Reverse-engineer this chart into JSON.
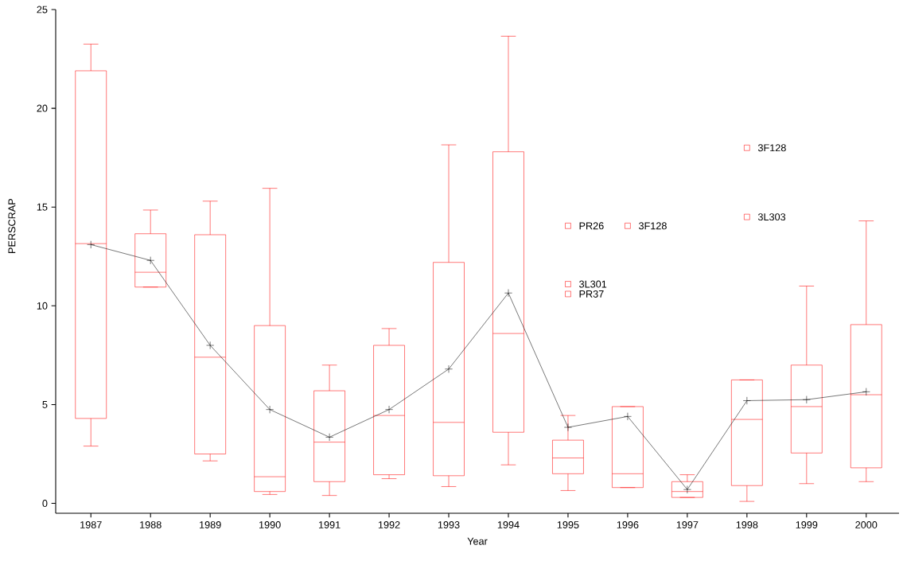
{
  "chart_data": {
    "type": "box",
    "categories": [
      "1987",
      "1988",
      "1989",
      "1990",
      "1991",
      "1992",
      "1993",
      "1994",
      "1995",
      "1996",
      "1997",
      "1998",
      "1999",
      "2000"
    ],
    "xlabel": "Year",
    "ylabel": "PERSCRAP",
    "ylim": [
      -0.5,
      25
    ],
    "yticks": [
      0,
      5,
      10,
      15,
      20,
      25
    ],
    "series": [
      {
        "type": "box",
        "color": "#ff0000",
        "marker": "square",
        "boxes": [
          {
            "low": 2.9,
            "q1": 4.3,
            "median": 13.15,
            "q3": 21.9,
            "high": 23.25
          },
          {
            "low": 10.95,
            "q1": 10.95,
            "median": 11.7,
            "q3": 13.65,
            "high": 14.85
          },
          {
            "low": 2.15,
            "q1": 2.5,
            "median": 7.4,
            "q3": 13.6,
            "high": 15.3
          },
          {
            "low": 0.45,
            "q1": 0.6,
            "median": 1.35,
            "q3": 9.0,
            "high": 15.95
          },
          {
            "low": 0.4,
            "q1": 1.1,
            "median": 3.1,
            "q3": 5.7,
            "high": 7.0
          },
          {
            "low": 1.25,
            "q1": 1.45,
            "median": 4.45,
            "q3": 8.0,
            "high": 8.85
          },
          {
            "low": 0.85,
            "q1": 1.4,
            "median": 4.1,
            "q3": 12.2,
            "high": 18.15
          },
          {
            "low": 1.95,
            "q1": 3.6,
            "median": 8.6,
            "q3": 17.8,
            "high": 23.65
          },
          {
            "low": 0.65,
            "q1": 1.5,
            "median": 2.3,
            "q3": 3.2,
            "high": 4.45,
            "outliers": [
              14.05,
              11.1,
              10.6
            ]
          },
          {
            "low": 0.8,
            "q1": 0.8,
            "median": 1.5,
            "q3": 4.9,
            "high": 4.9,
            "outliers": [
              14.05
            ]
          },
          {
            "low": 0.3,
            "q1": 0.3,
            "median": 0.6,
            "q3": 1.1,
            "high": 1.45
          },
          {
            "low": 0.1,
            "q1": 0.9,
            "median": 4.25,
            "q3": 6.25,
            "high": 6.25,
            "outliers": [
              18.0,
              14.5
            ]
          },
          {
            "low": 1.0,
            "q1": 2.55,
            "median": 4.9,
            "q3": 7.0,
            "high": 11.0
          },
          {
            "low": 1.1,
            "q1": 1.8,
            "median": 5.5,
            "q3": 9.05,
            "high": 14.3
          }
        ]
      },
      {
        "type": "line",
        "color": "#000000",
        "marker": "cross",
        "values": [
          13.1,
          12.3,
          8.0,
          4.75,
          3.35,
          4.75,
          6.8,
          10.65,
          3.85,
          4.4,
          0.7,
          5.2,
          5.25,
          5.65
        ]
      }
    ],
    "annotations": [
      "PR26",
      "3L301",
      "PR37",
      "3F128",
      "3F128",
      "3L303"
    ]
  }
}
